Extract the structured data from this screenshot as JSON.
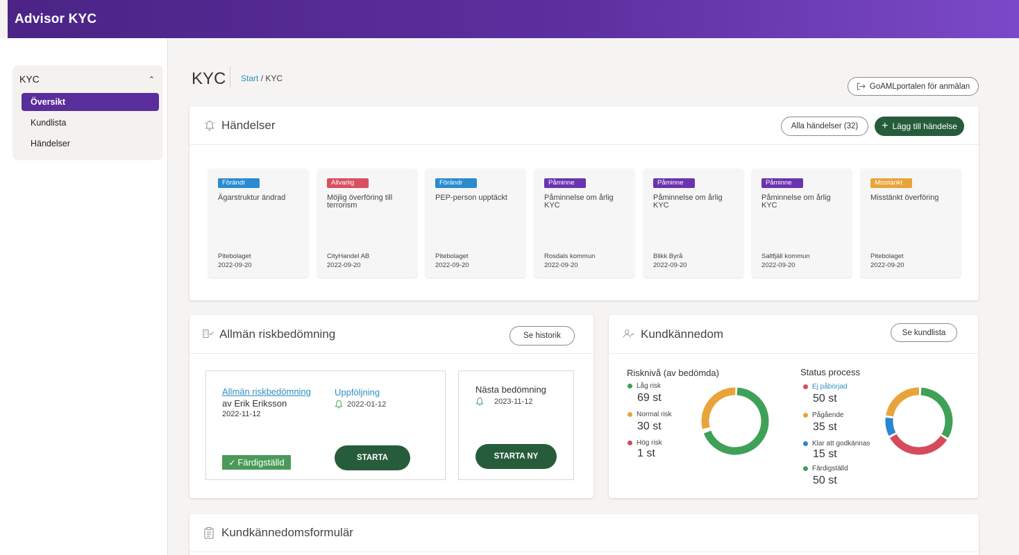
{
  "app": {
    "title": "Advisor KYC"
  },
  "sidebar": {
    "section": "KYC",
    "items": [
      {
        "label": "Översikt",
        "active": true
      },
      {
        "label": "Kundlista",
        "active": false
      },
      {
        "label": "Händelser",
        "active": false
      }
    ]
  },
  "header": {
    "title": "KYC",
    "breadcrumb": {
      "home": "Start",
      "current": "/ KYC"
    },
    "goaml_button": "GoAMLportalen för anmälan"
  },
  "events": {
    "title": "Händelser",
    "all_button": "Alla händelser (32)",
    "add_button": "Lägg till händelse",
    "items": [
      {
        "tag": "Förändr",
        "tag_color": "#2a8bd0",
        "title": "Ägarstruktur ändrad",
        "client": "Pitebolaget",
        "date": "2022-09-20"
      },
      {
        "tag": "Allvarlig",
        "tag_color": "#d9505f",
        "title": "Möjlig överföring till terrorism",
        "client": "CityHandel AB",
        "date": "2022-09-20"
      },
      {
        "tag": "Förändr",
        "tag_color": "#2a8bd0",
        "title": "PEP-person upptäckt",
        "client": "Pitebolaget",
        "date": "2022-09-20"
      },
      {
        "tag": "Påminne",
        "tag_color": "#6b33b0",
        "title": "Påminnelse om årlig KYC",
        "client": "Rosdals kommun",
        "date": "2022-09-20"
      },
      {
        "tag": "Påminne",
        "tag_color": "#6b33b0",
        "title": "Påminnelse om årlig KYC",
        "client": "Blikk Byrå",
        "date": "2022-09-20"
      },
      {
        "tag": "Påminne",
        "tag_color": "#6b33b0",
        "title": "Påminnelse om årlig KYC",
        "client": "Saltfjäll kommun",
        "date": "2022-09-20"
      },
      {
        "tag": "Misstänkt",
        "tag_color": "#e8a43b",
        "title": "Misstänkt överföring",
        "client": "Pitebolaget",
        "date": "2022-09-20"
      }
    ]
  },
  "risk": {
    "title": "Allmän riskbedömning",
    "history_button": "Se historik",
    "assessment_link": "Allmän riskbedömning",
    "assessment_by": "av Erik Eriksson",
    "assessment_date": "2022-11-12",
    "followup_label": "Uppföljning",
    "followup_date": "2022-01-12",
    "status": "Färdigställd",
    "start_button": "STARTA",
    "next_label": "Nästa bedömning",
    "next_date": "2023-11-12",
    "start_new_button": "STARTA NY"
  },
  "kyc": {
    "title": "Kundkännedom",
    "list_button": "Se kundlista",
    "risk_title": "Risknivå (av bedömda)",
    "risk_items": [
      {
        "label": "Låg risk",
        "value": "69 st",
        "n": 69,
        "color": "#3fa058"
      },
      {
        "label": "Normal risk",
        "value": "30 st",
        "n": 30,
        "color": "#e8a43b"
      },
      {
        "label": "Hög risk",
        "value": "1 st",
        "n": 1,
        "color": "#d64b5c"
      }
    ],
    "status_title": "Status process",
    "status_items": [
      {
        "label": "Ej påbörjad",
        "value": "50 st",
        "n": 50,
        "color": "#d64b5c"
      },
      {
        "label": "Pågående",
        "value": "35 st",
        "n": 35,
        "color": "#e8a43b"
      },
      {
        "label": "Klar att godkännas",
        "value": "15 st",
        "n": 15,
        "color": "#2a86cf"
      },
      {
        "label": "Färdigställd",
        "value": "50 st",
        "n": 50,
        "color": "#3fa058"
      }
    ]
  },
  "form": {
    "title": "Kundkännedomsformulär"
  }
}
